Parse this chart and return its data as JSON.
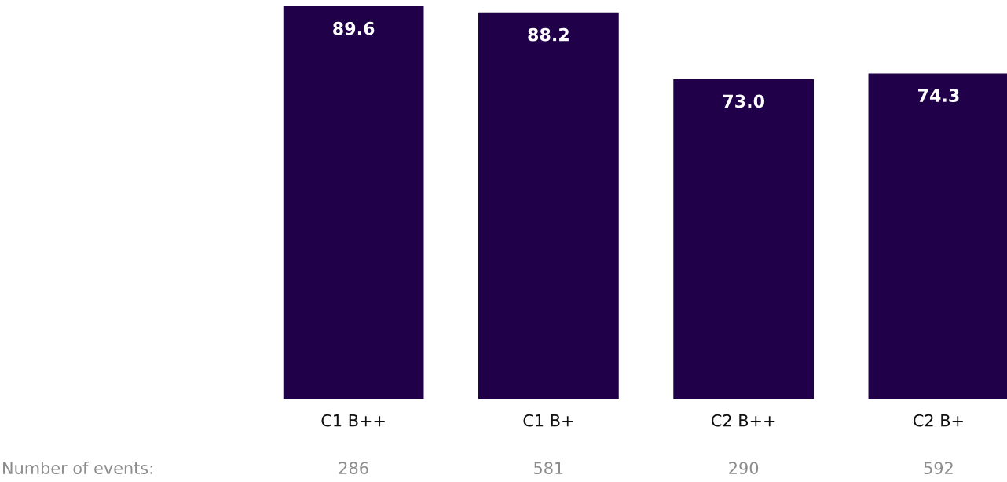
{
  "chart_data": {
    "type": "bar",
    "categories": [
      "C1 B++",
      "C1 B+",
      "C2 B++",
      "C2 B+"
    ],
    "values": [
      89.6,
      88.2,
      73.0,
      74.3
    ],
    "value_labels": [
      "89.6",
      "88.2",
      "73.0",
      "74.3"
    ],
    "color": "#21004a",
    "annotations": [
      "Number of events:",
      "286",
      "581",
      "290",
      "592"
    ]
  }
}
